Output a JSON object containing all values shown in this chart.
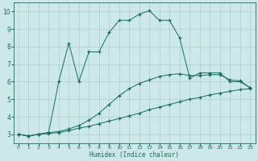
{
  "xlabel": "Humidex (Indice chaleur)",
  "background_color": "#cce8e8",
  "grid_color": "#b0cccc",
  "line_color": "#1a6b5a",
  "xlim": [
    -0.5,
    23.5
  ],
  "ylim": [
    2.5,
    10.5
  ],
  "xticks": [
    0,
    1,
    2,
    3,
    4,
    5,
    6,
    7,
    8,
    9,
    10,
    11,
    12,
    13,
    14,
    15,
    16,
    17,
    18,
    19,
    20,
    21,
    22,
    23
  ],
  "yticks": [
    3,
    4,
    5,
    6,
    7,
    8,
    9,
    10
  ],
  "curve1_x": [
    0,
    1,
    2,
    3,
    4,
    5,
    6,
    7,
    8,
    9,
    10,
    11,
    12,
    13,
    14,
    15,
    16,
    17,
    18,
    19,
    20,
    21,
    22,
    23
  ],
  "curve1_y": [
    3.0,
    2.9,
    3.0,
    3.05,
    3.1,
    3.2,
    3.35,
    3.45,
    3.6,
    3.75,
    3.9,
    4.05,
    4.2,
    4.4,
    4.55,
    4.7,
    4.85,
    5.0,
    5.1,
    5.25,
    5.35,
    5.45,
    5.55,
    5.6
  ],
  "curve2_x": [
    0,
    1,
    2,
    3,
    4,
    5,
    6,
    7,
    8,
    9,
    10,
    11,
    12,
    13,
    14,
    15,
    16,
    17,
    18,
    19,
    20,
    21,
    22,
    23
  ],
  "curve2_y": [
    3.0,
    2.9,
    3.0,
    3.1,
    3.15,
    3.3,
    3.5,
    3.8,
    4.2,
    4.7,
    5.2,
    5.6,
    5.9,
    6.1,
    6.3,
    6.4,
    6.45,
    6.35,
    6.35,
    6.4,
    6.4,
    6.1,
    6.05,
    5.65
  ],
  "curve3_x": [
    0,
    1,
    2,
    3,
    4,
    5,
    6,
    7,
    8,
    9,
    10,
    11,
    12,
    13,
    14,
    15,
    16,
    17,
    18,
    19,
    20,
    21,
    22,
    23
  ],
  "curve3_y": [
    3.0,
    2.9,
    3.0,
    3.1,
    6.0,
    8.2,
    6.0,
    7.7,
    7.7,
    8.8,
    9.5,
    9.5,
    9.85,
    10.05,
    9.5,
    9.5,
    8.5,
    6.2,
    6.5,
    6.5,
    6.5,
    6.0,
    6.0,
    5.65
  ]
}
